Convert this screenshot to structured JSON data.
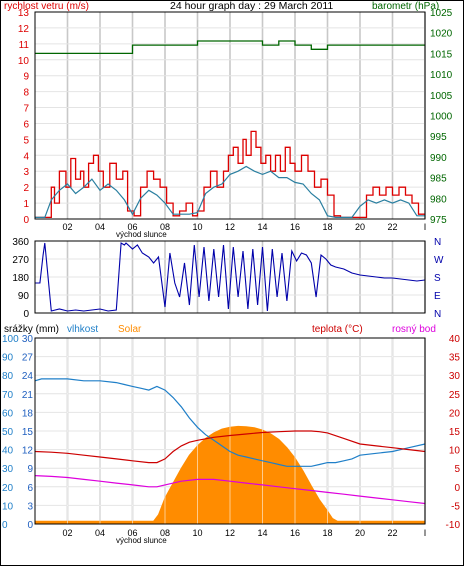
{
  "colors": {
    "wind": "#dd0000",
    "wind_avg": "#2a7fa0",
    "pressure": "#006600",
    "direction": "#0000aa",
    "humidity": "#1f7fc8",
    "solar": "#ff8c00",
    "temperature": "#cc0000",
    "dewpoint": "#dd00dd",
    "rain_axis": "#1f5fbf",
    "grid": "#c8c8c8",
    "frame": "#000000"
  },
  "chart_data": [
    {
      "type": "line",
      "title": "24 hour graph day : 29 March 2011",
      "left_axis_title": "rychlost vetru (m/s)",
      "right_axis_title": "barometr (hPa)",
      "x_tick_labels": [
        "02",
        "04",
        "06",
        "08",
        "10",
        "12",
        "14",
        "16",
        "18",
        "20",
        "22",
        "I"
      ],
      "x_annotation": "východ slunce",
      "y_left_ticks": [
        "13",
        "12",
        "11",
        "10",
        "9",
        "8",
        "7",
        "6",
        "5",
        "4",
        "3",
        "2",
        "1",
        "0"
      ],
      "y_right_ticks": [
        "1025",
        "1020",
        "1015",
        "1010",
        "1005",
        "1000",
        "995",
        "990",
        "985",
        "980",
        "975"
      ],
      "ylim_left": [
        0,
        13
      ],
      "ylim_right": [
        975,
        1025
      ],
      "series": [
        {
          "axis": "right",
          "style": "step",
          "x": [
            0,
            6,
            6,
            10,
            10,
            14,
            14,
            15,
            15,
            16,
            16,
            17,
            17,
            18,
            18,
            24
          ],
          "y": [
            1015,
            1015,
            1017,
            1017,
            1018,
            1018,
            1017,
            1017,
            1018,
            1018,
            1017,
            1017,
            1016,
            1016,
            1017,
            1017
          ]
        },
        {
          "axis": "left",
          "style": "step",
          "x": [
            0.0,
            0.6,
            1.0,
            1.2,
            1.5,
            1.9,
            2.2,
            2.5,
            2.8,
            3.0,
            3.3,
            3.6,
            3.9,
            4.2,
            4.6,
            5.0,
            5.4,
            5.7,
            6.1,
            6.5,
            6.9,
            7.3,
            7.7,
            8.1,
            8.5,
            8.9,
            9.3,
            9.7,
            10.0,
            10.4,
            10.8,
            11.2,
            11.6,
            11.9,
            12.2,
            12.5,
            12.8,
            13.0,
            13.3,
            13.6,
            13.9,
            14.2,
            14.5,
            14.8,
            15.1,
            15.4,
            15.7,
            16.0,
            16.4,
            16.8,
            17.2,
            17.6,
            18.0,
            18.4,
            18.8,
            19.2,
            19.6,
            20.0,
            20.4,
            20.8,
            21.2,
            21.6,
            22.0,
            22.4,
            22.8,
            23.2,
            23.6,
            24.0
          ],
          "y": [
            0.1,
            0.1,
            2.0,
            1.0,
            3.0,
            2.0,
            3.8,
            2.5,
            3.0,
            2.0,
            3.5,
            4.0,
            3.0,
            2.0,
            3.5,
            2.5,
            3.0,
            0.5,
            0.2,
            2.0,
            3.0,
            2.5,
            2.0,
            1.0,
            0.2,
            0.5,
            1.0,
            0.2,
            0.5,
            2.0,
            3.0,
            2.0,
            3.0,
            4.0,
            4.5,
            3.5,
            5.0,
            4.0,
            5.5,
            4.5,
            3.5,
            4.0,
            3.0,
            4.0,
            3.0,
            4.5,
            3.5,
            3.0,
            4.0,
            3.0,
            2.0,
            2.5,
            1.5,
            0.2,
            0.1,
            0.1,
            0.1,
            0.1,
            1.5,
            2.0,
            1.5,
            2.0,
            1.5,
            2.0,
            1.5,
            1.0,
            0.3,
            0.3
          ]
        },
        {
          "axis": "left",
          "style": "line",
          "x": [
            0.0,
            0.6,
            1.0,
            1.5,
            2.0,
            2.5,
            3.0,
            3.5,
            4.0,
            4.5,
            5.0,
            5.5,
            6.0,
            6.5,
            7.0,
            7.5,
            8.0,
            8.5,
            9.0,
            9.5,
            10.0,
            10.5,
            11.0,
            11.5,
            12.0,
            12.5,
            13.0,
            13.5,
            14.0,
            14.5,
            15.0,
            15.5,
            16.0,
            16.5,
            17.0,
            17.5,
            18.0,
            18.5,
            19.0,
            19.5,
            20.0,
            20.5,
            21.0,
            21.5,
            22.0,
            22.5,
            23.0,
            23.5,
            24.0
          ],
          "y": [
            0.1,
            0.1,
            1.2,
            1.8,
            2.2,
            1.6,
            2.0,
            2.5,
            1.8,
            2.2,
            1.8,
            1.2,
            0.3,
            1.3,
            1.8,
            1.5,
            1.0,
            0.3,
            0.3,
            0.3,
            0.4,
            1.6,
            2.0,
            2.2,
            2.8,
            3.0,
            3.3,
            3.0,
            2.8,
            3.0,
            2.6,
            2.6,
            2.3,
            2.2,
            1.6,
            1.2,
            0.2,
            0.1,
            0.1,
            0.1,
            0.8,
            1.2,
            1.0,
            1.2,
            1.0,
            1.2,
            1.0,
            0.2,
            0.2
          ]
        }
      ]
    },
    {
      "type": "line",
      "y_left_ticks": [
        "360",
        "270",
        "180",
        "90",
        "0"
      ],
      "y_right_ticks": [
        "N",
        "W",
        "S",
        "E",
        "N"
      ],
      "ylim": [
        0,
        360
      ],
      "series": [
        {
          "x": [
            0.0,
            0.3,
            0.5,
            0.6,
            1.0,
            1.5,
            2.0,
            2.5,
            3.0,
            3.5,
            4.0,
            4.5,
            5.0,
            5.3,
            5.5,
            5.6,
            6.0,
            6.3,
            6.6,
            7.0,
            7.3,
            7.6,
            8.0,
            8.3,
            8.6,
            8.9,
            9.2,
            9.5,
            9.8,
            10.1,
            10.4,
            10.7,
            11.0,
            11.3,
            11.6,
            11.9,
            12.2,
            12.5,
            12.8,
            13.1,
            13.4,
            13.7,
            14.0,
            14.3,
            14.6,
            14.9,
            15.2,
            15.5,
            15.8,
            16.1,
            16.4,
            16.7,
            17.0,
            17.3,
            17.6,
            17.9,
            18.2,
            18.5,
            19.0,
            19.5,
            20.0,
            20.5,
            21.0,
            21.5,
            22.0,
            22.5,
            23.0,
            23.5,
            24.0
          ],
          "y": [
            150,
            150,
            290,
            350,
            10,
            20,
            10,
            15,
            10,
            15,
            20,
            10,
            15,
            350,
            340,
            350,
            320,
            340,
            300,
            280,
            250,
            280,
            30,
            300,
            150,
            80,
            250,
            40,
            340,
            80,
            330,
            60,
            320,
            80,
            340,
            20,
            330,
            80,
            310,
            20,
            320,
            40,
            330,
            10,
            320,
            80,
            300,
            60,
            310,
            260,
            300,
            290,
            250,
            80,
            290,
            270,
            240,
            230,
            220,
            200,
            190,
            185,
            180,
            175,
            175,
            170,
            165,
            160,
            165
          ]
        }
      ]
    },
    {
      "type": "line",
      "series_labels": [
        "srážky (mm)",
        "vlhkost",
        "Solar",
        "teplota (°C)",
        "rosný bod"
      ],
      "x_tick_labels": [
        "02",
        "04",
        "06",
        "08",
        "10",
        "12",
        "14",
        "16",
        "18",
        "20",
        "22",
        "I"
      ],
      "x_annotation": "východ slunce",
      "rain_ticks": [
        "30",
        "27",
        "24",
        "21",
        "18",
        "15",
        "12",
        "9",
        "6",
        "3",
        "0"
      ],
      "humidity_ticks": [
        "100",
        "90",
        "80",
        "70",
        "60",
        "50",
        "40",
        "30",
        "20",
        "10",
        "0"
      ],
      "temperature_ticks": [
        "40",
        "35",
        "30",
        "25",
        "20",
        "15",
        "10",
        "5",
        "0",
        "-5",
        "-10"
      ],
      "ylim_rain": [
        0,
        30
      ],
      "ylim_humidity": [
        0,
        100
      ],
      "ylim_temperature": [
        -10,
        40
      ],
      "solar": {
        "x": [
          0.0,
          7.3,
          7.6,
          8.0,
          8.5,
          9.0,
          9.5,
          10.0,
          10.5,
          11.0,
          11.5,
          12.0,
          12.5,
          13.0,
          13.5,
          14.0,
          14.5,
          15.0,
          15.5,
          16.0,
          16.5,
          17.0,
          17.5,
          18.0,
          18.3,
          18.6,
          24.0
        ],
        "y": [
          1.5,
          1.5,
          5,
          14,
          22,
          30,
          37,
          42,
          46,
          49,
          51,
          52,
          52.5,
          52.3,
          51.8,
          50.5,
          48.5,
          45.5,
          41,
          35.5,
          28.5,
          20.5,
          13,
          7,
          3,
          1.5,
          1.5
        ]
      },
      "humidity": {
        "x": [
          0.0,
          0.4,
          1.0,
          2.0,
          3.0,
          4.0,
          5.0,
          5.5,
          6.0,
          6.5,
          7.0,
          7.5,
          8.0,
          8.5,
          9.0,
          9.5,
          10.0,
          10.5,
          11.0,
          11.5,
          12.0,
          12.5,
          13.0,
          13.5,
          14.0,
          14.5,
          15.0,
          15.5,
          16.0,
          16.5,
          17.0,
          17.5,
          18.0,
          18.5,
          19.0,
          19.5,
          20.0,
          21.0,
          22.0,
          23.0,
          24.0
        ],
        "y": [
          77,
          78,
          78,
          78,
          77,
          77,
          76,
          75,
          74,
          73,
          72,
          74,
          72,
          68,
          63,
          57,
          52,
          48,
          45,
          42,
          39,
          37,
          36,
          35,
          34,
          33,
          32,
          31,
          31,
          31,
          31,
          32,
          33,
          33,
          34,
          35,
          37,
          38,
          39,
          41,
          43
        ]
      },
      "temperature": {
        "x": [
          0.0,
          1.0,
          2.0,
          3.0,
          4.0,
          5.0,
          6.0,
          7.0,
          7.5,
          8.0,
          8.5,
          9.0,
          9.5,
          10.0,
          11.0,
          12.0,
          13.0,
          14.0,
          15.0,
          16.0,
          17.0,
          17.5,
          18.0,
          19.0,
          20.0,
          21.0,
          22.0,
          23.0,
          24.0
        ],
        "y": [
          9.5,
          9.3,
          9.0,
          8.5,
          8.0,
          7.5,
          7.0,
          6.5,
          6.5,
          7.5,
          9.5,
          11.0,
          12.0,
          12.5,
          13.3,
          13.8,
          14.2,
          14.6,
          14.8,
          15.0,
          15.0,
          14.8,
          14.5,
          13.0,
          11.5,
          11.0,
          10.5,
          10.0,
          9.5
        ]
      },
      "dewpoint": {
        "x": [
          0.0,
          1.0,
          2.0,
          3.0,
          4.0,
          5.0,
          6.0,
          7.0,
          7.5,
          8.0,
          8.5,
          9.0,
          10.0,
          11.0,
          12.0,
          13.0,
          14.0,
          15.0,
          16.0,
          17.0,
          18.0,
          19.0,
          20.0,
          21.0,
          22.0,
          23.0,
          24.0
        ],
        "y": [
          3.0,
          2.8,
          2.5,
          2.0,
          1.5,
          1.0,
          0.5,
          0.0,
          0.0,
          0.5,
          1.0,
          1.5,
          2.0,
          2.0,
          1.5,
          1.0,
          0.5,
          0.0,
          -0.5,
          -1.0,
          -1.5,
          -2.0,
          -2.5,
          -3.0,
          -3.5,
          -4.0,
          -4.5
        ]
      }
    }
  ]
}
